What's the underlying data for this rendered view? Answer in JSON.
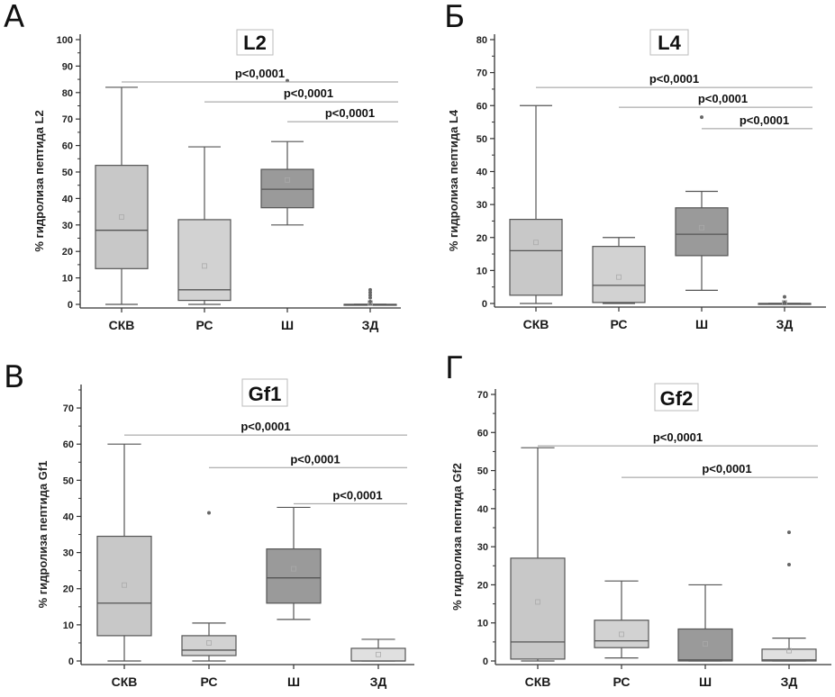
{
  "figure": {
    "panel_letters": [
      "А",
      "Б",
      "В",
      "Г"
    ]
  },
  "chart_data": [
    {
      "type": "boxplot",
      "panel": "А",
      "title": "L2",
      "xlabel": "",
      "ylabel": "% гидролиза пептида L2",
      "categories": [
        "СКВ",
        "РС",
        "Ш",
        "ЗД"
      ],
      "ylim": [
        0,
        100
      ],
      "yticks": [
        0,
        10,
        20,
        30,
        40,
        50,
        60,
        70,
        80,
        90,
        100
      ],
      "boxes": [
        {
          "name": "СКВ",
          "min": 0,
          "q1": 13.5,
          "median": 28,
          "q3": 52.5,
          "max": 82,
          "mean": 33,
          "outliers": [],
          "fill": "#c8c8c8"
        },
        {
          "name": "РС",
          "min": 0,
          "q1": 1.5,
          "median": 5.5,
          "q3": 32,
          "max": 59.5,
          "mean": 14.5,
          "outliers": [],
          "fill": "#d2d2d2"
        },
        {
          "name": "Ш",
          "min": 30,
          "q1": 36.5,
          "median": 43.5,
          "q3": 51,
          "max": 61.5,
          "mean": 47,
          "outliers": [
            84.5
          ],
          "fill": "#9a9a9a"
        },
        {
          "name": "ЗД",
          "min": 0,
          "q1": 0,
          "median": 0,
          "q3": 0,
          "max": 0,
          "mean": 0.5,
          "outliers": [
            1,
            2.5,
            3.5,
            4.5,
            5.5
          ],
          "fill": "#e0e0e0"
        }
      ],
      "significance": [
        {
          "from": "СКВ",
          "to": "ЗД",
          "y": 84,
          "label": "p<0,0001"
        },
        {
          "from": "РС",
          "to": "ЗД",
          "y": 76.5,
          "label": "p<0,0001"
        },
        {
          "from": "Ш",
          "to": "ЗД",
          "y": 69,
          "label": "p<0,0001"
        }
      ]
    },
    {
      "type": "boxplot",
      "panel": "Б",
      "title": "L4",
      "xlabel": "",
      "ylabel": "% гидролиза пептида L4",
      "categories": [
        "СКВ",
        "РС",
        "Ш",
        "ЗД"
      ],
      "ylim": [
        0,
        80
      ],
      "yticks": [
        0,
        10,
        20,
        30,
        40,
        50,
        60,
        70,
        80
      ],
      "boxes": [
        {
          "name": "СКВ",
          "min": 0,
          "q1": 2.5,
          "median": 16,
          "q3": 25.5,
          "max": 60,
          "mean": 18.5,
          "outliers": [],
          "fill": "#c8c8c8"
        },
        {
          "name": "РС",
          "min": 0,
          "q1": 0.3,
          "median": 5.5,
          "q3": 17.3,
          "max": 20,
          "mean": 8,
          "outliers": [],
          "fill": "#d2d2d2"
        },
        {
          "name": "Ш",
          "min": 4,
          "q1": 14.5,
          "median": 21,
          "q3": 29,
          "max": 34,
          "mean": 23,
          "outliers": [
            56.5
          ],
          "fill": "#9a9a9a"
        },
        {
          "name": "ЗД",
          "min": 0,
          "q1": 0,
          "median": 0,
          "q3": 0,
          "max": 0,
          "mean": 0.2,
          "outliers": [
            0.3,
            2
          ],
          "fill": "#e0e0e0"
        }
      ],
      "significance": [
        {
          "from": "СКВ",
          "to": "ЗД",
          "y": 65.5,
          "label": "p<0,0001"
        },
        {
          "from": "РС",
          "to": "ЗД",
          "y": 59.5,
          "label": "p<0,0001"
        },
        {
          "from": "Ш",
          "to": "ЗД",
          "y": 53,
          "label": "p<0,0001"
        }
      ]
    },
    {
      "type": "boxplot",
      "panel": "В",
      "title": "Gf1",
      "xlabel": "",
      "ylabel": "% гидролиза пептида Gf1",
      "categories": [
        "СКВ",
        "РС",
        "Ш",
        "ЗД"
      ],
      "ylim": [
        0,
        75
      ],
      "yticks": [
        0,
        10,
        20,
        30,
        40,
        50,
        60,
        70
      ],
      "boxes": [
        {
          "name": "СКВ",
          "min": 0,
          "q1": 7,
          "median": 16,
          "q3": 34.5,
          "max": 60,
          "mean": 21,
          "outliers": [],
          "fill": "#c8c8c8"
        },
        {
          "name": "РС",
          "min": 0,
          "q1": 1.5,
          "median": 3,
          "q3": 7,
          "max": 10.5,
          "mean": 5,
          "outliers": [
            41
          ],
          "fill": "#d2d2d2"
        },
        {
          "name": "Ш",
          "min": 11.5,
          "q1": 16,
          "median": 23,
          "q3": 31,
          "max": 42.5,
          "mean": 25.5,
          "outliers": [],
          "fill": "#9a9a9a"
        },
        {
          "name": "ЗД",
          "min": 0,
          "q1": 0,
          "median": 0,
          "q3": 3.5,
          "max": 6,
          "mean": 1.8,
          "outliers": [],
          "fill": "#e0e0e0"
        }
      ],
      "significance": [
        {
          "from": "СКВ",
          "to": "ЗД",
          "y": 62.5,
          "label": "p<0,0001"
        },
        {
          "from": "РС",
          "to": "ЗД",
          "y": 53.5,
          "label": "p<0,0001"
        },
        {
          "from": "Ш",
          "to": "ЗД",
          "y": 43.5,
          "label": "p<0,0001"
        }
      ]
    },
    {
      "type": "boxplot",
      "panel": "Г",
      "title": "Gf2",
      "xlabel": "",
      "ylabel": "% гидролиза пептида Gf2",
      "categories": [
        "СКВ",
        "РС",
        "Ш",
        "ЗД"
      ],
      "ylim": [
        0,
        70
      ],
      "yticks": [
        0,
        10,
        20,
        30,
        40,
        50,
        60,
        70
      ],
      "boxes": [
        {
          "name": "СКВ",
          "min": 0,
          "q1": 0.5,
          "median": 5,
          "q3": 27,
          "max": 56,
          "mean": 15.5,
          "outliers": [],
          "fill": "#c8c8c8"
        },
        {
          "name": "РС",
          "min": 0.8,
          "q1": 3.5,
          "median": 5.3,
          "q3": 10.7,
          "max": 21,
          "mean": 7,
          "outliers": [],
          "fill": "#d2d2d2"
        },
        {
          "name": "Ш",
          "min": 0,
          "q1": 0,
          "median": 0.3,
          "q3": 8.4,
          "max": 20,
          "mean": 4.5,
          "outliers": [],
          "fill": "#9a9a9a"
        },
        {
          "name": "ЗД",
          "min": 0,
          "q1": 0,
          "median": 0.3,
          "q3": 3.1,
          "max": 6,
          "mean": 2.7,
          "outliers": [
            25.3,
            33.8
          ],
          "fill": "#e0e0e0"
        }
      ],
      "significance": [
        {
          "from": "СКВ",
          "to": "ЗД",
          "y": 56.5,
          "label": "p<0,0001"
        },
        {
          "from": "РС",
          "to": "ЗД",
          "y": 48.2,
          "label": "p<0,0001"
        }
      ]
    }
  ]
}
